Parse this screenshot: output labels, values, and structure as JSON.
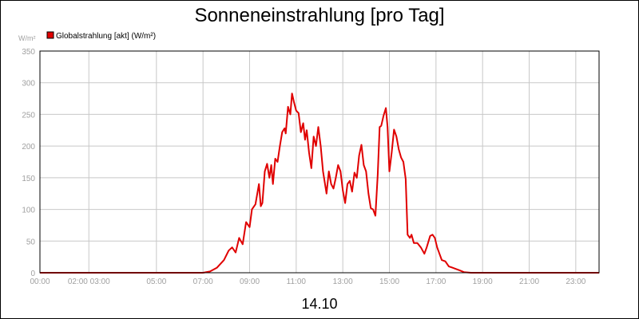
{
  "chart_data": {
    "type": "line",
    "title": "Sonneneinstrahlung [pro Tag]",
    "ylabel": "W/m²",
    "xlabel": "14.10",
    "ylim": [
      0,
      350
    ],
    "yticks": [
      0,
      50,
      100,
      150,
      200,
      250,
      300,
      350
    ],
    "xticks": [
      {
        "hour": 0,
        "label": "00:00"
      },
      {
        "hour": 2.1,
        "label": "02:00 03:00"
      },
      {
        "hour": 5,
        "label": "05:00"
      },
      {
        "hour": 7,
        "label": "07:00"
      },
      {
        "hour": 9,
        "label": "09:00"
      },
      {
        "hour": 11,
        "label": "11:00"
      },
      {
        "hour": 13,
        "label": "13:00"
      },
      {
        "hour": 15,
        "label": "15:00"
      },
      {
        "hour": 17,
        "label": "17:00"
      },
      {
        "hour": 19,
        "label": "19:00"
      },
      {
        "hour": 21,
        "label": "21:00"
      },
      {
        "hour": 23,
        "label": "23:00"
      }
    ],
    "grid": true,
    "legend_position": "top-left",
    "series": [
      {
        "name": "Globalstrahlung [akt] (W/m²)",
        "color": "#e00000",
        "points": [
          [
            0,
            0
          ],
          [
            7.0,
            0
          ],
          [
            7.3,
            2
          ],
          [
            7.6,
            8
          ],
          [
            7.9,
            20
          ],
          [
            8.1,
            35
          ],
          [
            8.25,
            40
          ],
          [
            8.4,
            32
          ],
          [
            8.55,
            55
          ],
          [
            8.7,
            45
          ],
          [
            8.85,
            80
          ],
          [
            9.0,
            72
          ],
          [
            9.1,
            100
          ],
          [
            9.25,
            108
          ],
          [
            9.4,
            140
          ],
          [
            9.48,
            105
          ],
          [
            9.55,
            110
          ],
          [
            9.65,
            160
          ],
          [
            9.75,
            172
          ],
          [
            9.85,
            150
          ],
          [
            9.93,
            170
          ],
          [
            10.0,
            140
          ],
          [
            10.1,
            180
          ],
          [
            10.2,
            175
          ],
          [
            10.3,
            200
          ],
          [
            10.4,
            222
          ],
          [
            10.5,
            228
          ],
          [
            10.55,
            220
          ],
          [
            10.65,
            262
          ],
          [
            10.75,
            250
          ],
          [
            10.82,
            283
          ],
          [
            10.9,
            270
          ],
          [
            11.0,
            256
          ],
          [
            11.1,
            252
          ],
          [
            11.2,
            222
          ],
          [
            11.3,
            236
          ],
          [
            11.38,
            210
          ],
          [
            11.45,
            225
          ],
          [
            11.55,
            190
          ],
          [
            11.65,
            165
          ],
          [
            11.75,
            215
          ],
          [
            11.85,
            200
          ],
          [
            11.95,
            230
          ],
          [
            12.05,
            200
          ],
          [
            12.15,
            160
          ],
          [
            12.3,
            125
          ],
          [
            12.4,
            160
          ],
          [
            12.5,
            140
          ],
          [
            12.6,
            133
          ],
          [
            12.7,
            150
          ],
          [
            12.8,
            170
          ],
          [
            12.9,
            160
          ],
          [
            13.0,
            130
          ],
          [
            13.1,
            110
          ],
          [
            13.2,
            140
          ],
          [
            13.3,
            145
          ],
          [
            13.4,
            128
          ],
          [
            13.5,
            158
          ],
          [
            13.6,
            150
          ],
          [
            13.7,
            185
          ],
          [
            13.8,
            202
          ],
          [
            13.9,
            170
          ],
          [
            14.0,
            160
          ],
          [
            14.1,
            125
          ],
          [
            14.2,
            102
          ],
          [
            14.3,
            100
          ],
          [
            14.4,
            90
          ],
          [
            14.5,
            155
          ],
          [
            14.58,
            230
          ],
          [
            14.65,
            232
          ],
          [
            14.75,
            248
          ],
          [
            14.85,
            260
          ],
          [
            14.92,
            230
          ],
          [
            15.0,
            160
          ],
          [
            15.1,
            190
          ],
          [
            15.2,
            226
          ],
          [
            15.3,
            215
          ],
          [
            15.4,
            195
          ],
          [
            15.5,
            182
          ],
          [
            15.6,
            175
          ],
          [
            15.7,
            148
          ],
          [
            15.78,
            60
          ],
          [
            15.88,
            55
          ],
          [
            15.95,
            60
          ],
          [
            16.05,
            47
          ],
          [
            16.2,
            47
          ],
          [
            16.35,
            40
          ],
          [
            16.5,
            30
          ],
          [
            16.6,
            40
          ],
          [
            16.75,
            58
          ],
          [
            16.85,
            60
          ],
          [
            16.95,
            55
          ],
          [
            17.05,
            40
          ],
          [
            17.15,
            30
          ],
          [
            17.25,
            20
          ],
          [
            17.4,
            18
          ],
          [
            17.55,
            10
          ],
          [
            17.7,
            8
          ],
          [
            17.85,
            6
          ],
          [
            18.0,
            4
          ],
          [
            18.2,
            1
          ],
          [
            18.5,
            0
          ],
          [
            24,
            0
          ]
        ]
      }
    ]
  }
}
